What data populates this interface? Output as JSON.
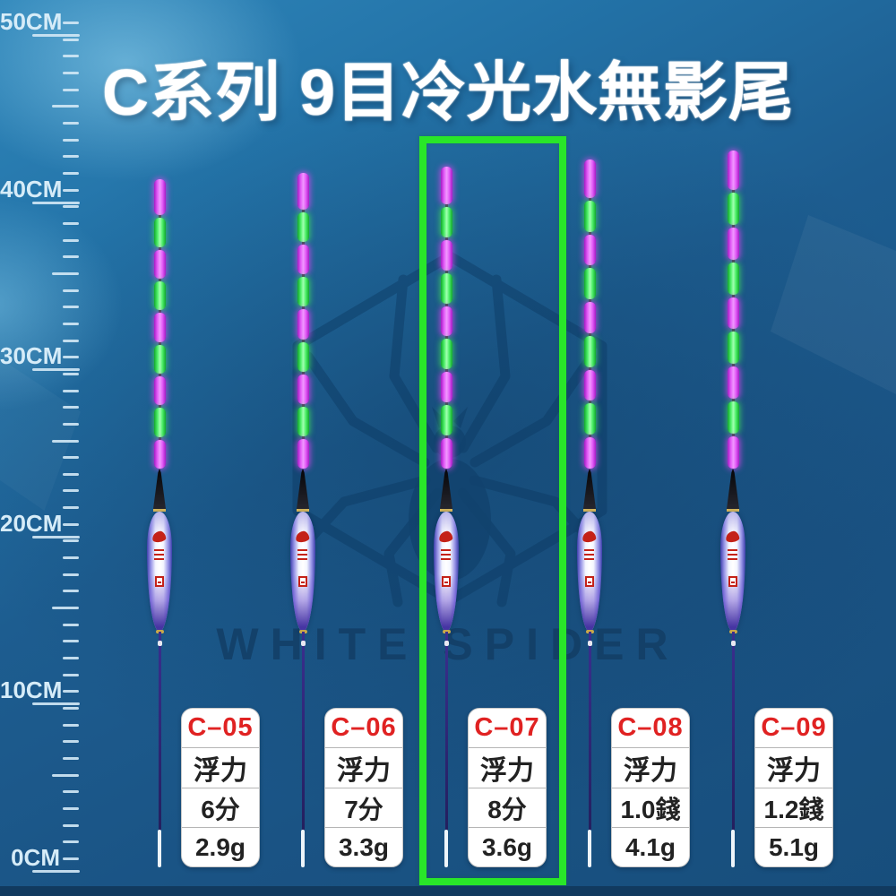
{
  "title": "C系列  9目冷光水無影尾",
  "watermark": {
    "brand": "WHITE SPIDER"
  },
  "ruler": {
    "labels": [
      "50CM",
      "40CM",
      "30CM",
      "20CM",
      "10CM",
      "0CM"
    ]
  },
  "floats": [
    {
      "model": "C–05",
      "buoyancy_label": "浮力",
      "buoyancy": "6分",
      "weight": "2.9g",
      "highlighted": false
    },
    {
      "model": "C–06",
      "buoyancy_label": "浮力",
      "buoyancy": "7分",
      "weight": "3.3g",
      "highlighted": false
    },
    {
      "model": "C–07",
      "buoyancy_label": "浮力",
      "buoyancy": "8分",
      "weight": "3.6g",
      "highlighted": true
    },
    {
      "model": "C–08",
      "buoyancy_label": "浮力",
      "buoyancy": "1.0錢",
      "weight": "4.1g",
      "highlighted": false
    },
    {
      "model": "C–09",
      "buoyancy_label": "浮力",
      "buoyancy": "1.2錢",
      "weight": "5.1g",
      "highlighted": false
    }
  ],
  "tail": {
    "segments": 9,
    "pattern": [
      "magenta",
      "green"
    ]
  },
  "colors": {
    "highlight_green": "#29e629",
    "model_red": "#e02222",
    "tail_magenta": "#d83cf0",
    "tail_green": "#3ae652",
    "bg_top": "#2f86ba",
    "bg_bottom": "#174e7c",
    "ruler_text": "#d6ecf8"
  }
}
